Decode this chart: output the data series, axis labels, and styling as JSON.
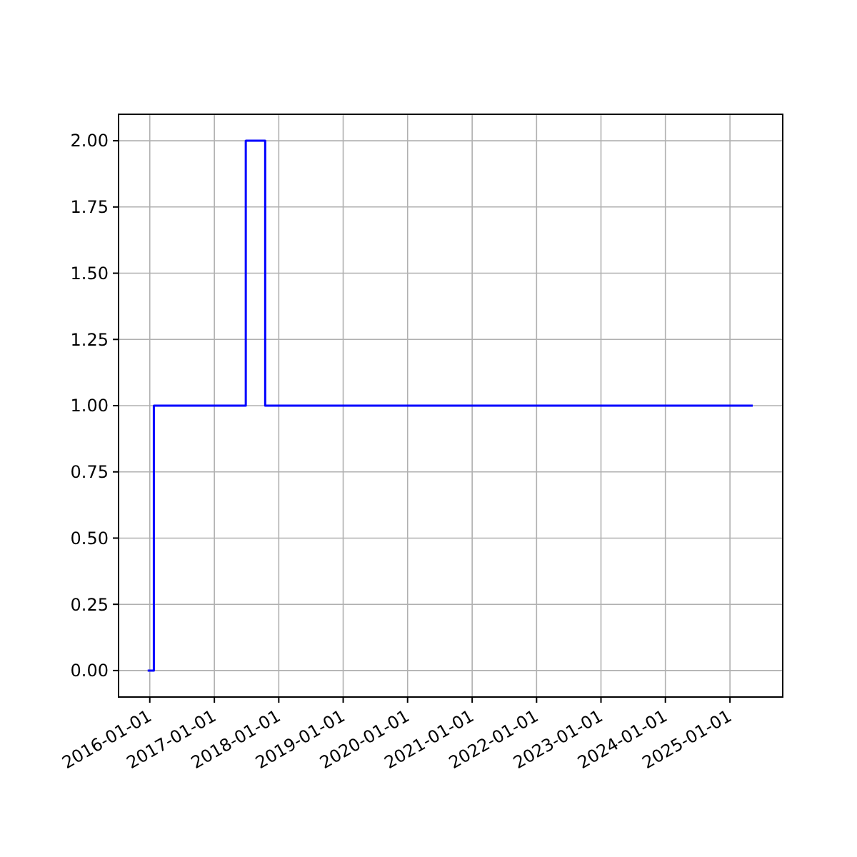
{
  "chart_data": {
    "type": "step",
    "x": [
      "2015-12-20",
      "2016-01-24",
      "2017-06-28",
      "2017-10-16",
      "2025-05-10"
    ],
    "series": [
      {
        "color": "#0000ff",
        "values": [
          0,
          1,
          2,
          1,
          1
        ]
      }
    ],
    "xlim": [
      "2015-07-08",
      "2025-10-27"
    ],
    "xticks": [
      "2016-01-01",
      "2017-01-01",
      "2018-01-01",
      "2019-01-01",
      "2020-01-01",
      "2021-01-01",
      "2022-01-01",
      "2023-01-01",
      "2024-01-01",
      "2025-01-01"
    ],
    "ylim": [
      -0.1,
      2.1
    ],
    "yticks": [
      {
        "value": 0,
        "label": "0.00"
      },
      {
        "value": 0.25,
        "label": "0.25"
      },
      {
        "value": 0.5,
        "label": "0.50"
      },
      {
        "value": 0.75,
        "label": "0.75"
      },
      {
        "value": 1,
        "label": "1.00"
      },
      {
        "value": 1.25,
        "label": "1.25"
      },
      {
        "value": 1.5,
        "label": "1.50"
      },
      {
        "value": 1.75,
        "label": "1.75"
      },
      {
        "value": 2,
        "label": "2.00"
      }
    ],
    "grid": true
  }
}
